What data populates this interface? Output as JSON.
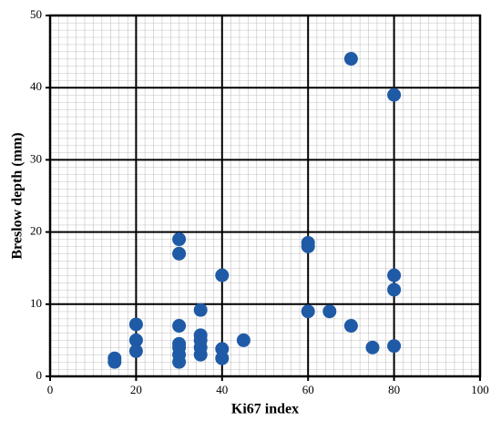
{
  "chart_data": {
    "type": "scatter",
    "x_label": "Ki67 index",
    "y_label": "Breslow depth (mm)",
    "xlim": [
      0,
      100
    ],
    "ylim": [
      0,
      50
    ],
    "xticks": [
      0,
      20,
      40,
      60,
      80,
      100
    ],
    "yticks": [
      0,
      10,
      20,
      30,
      40,
      50
    ],
    "grid": true,
    "color": "#1f5aa6",
    "x": [
      15,
      15,
      20,
      20,
      20,
      30,
      30,
      30,
      30,
      30,
      30,
      30,
      35,
      35,
      35,
      35,
      35,
      40,
      40,
      40,
      45,
      60,
      60,
      60,
      65,
      70,
      70,
      75,
      80,
      80,
      80,
      80
    ],
    "values": [
      2.5,
      2,
      7.2,
      5,
      3.5,
      19,
      17,
      7,
      4.5,
      4,
      3,
      2,
      9.2,
      5.7,
      5,
      4,
      3,
      14,
      3.8,
      2.5,
      5,
      18.5,
      18,
      9,
      9,
      44,
      7,
      4,
      39,
      14,
      12,
      4.2
    ]
  }
}
